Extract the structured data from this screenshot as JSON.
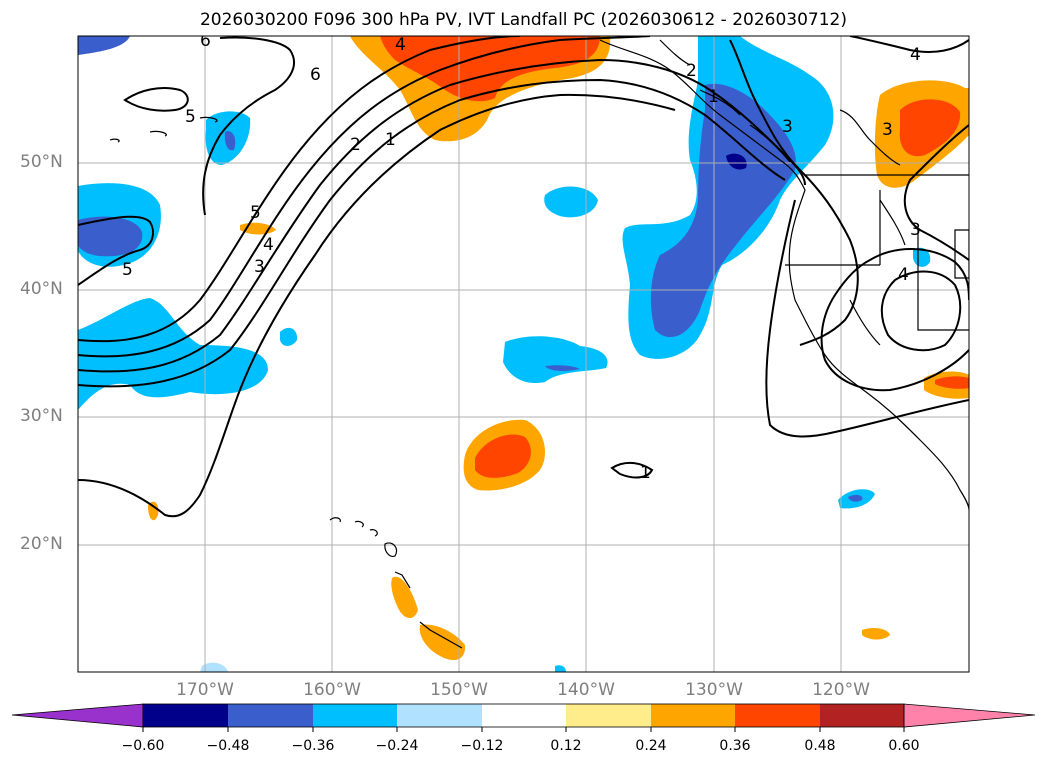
{
  "title": "2026030200 F096 300 hPa PV, IVT Landfall PC (2026030612 - 2026030712)",
  "map": {
    "lat_labels": [
      "50°N",
      "40°N",
      "30°N",
      "20°N"
    ],
    "lon_labels": [
      "170°W",
      "160°W",
      "150°W",
      "140°W",
      "130°W",
      "120°W"
    ],
    "contour_labels": [
      "6",
      "5",
      "4",
      "3",
      "2",
      "1",
      "5",
      "4",
      "3",
      "2",
      "1",
      "3",
      "4",
      "4",
      "3",
      "5",
      "1",
      "6"
    ]
  },
  "colorbar": {
    "ticks": [
      "−0.60",
      "−0.48",
      "−0.36",
      "−0.24",
      "−0.12",
      "0.12",
      "0.24",
      "0.36",
      "0.48",
      "0.60"
    ],
    "colors": [
      "#9932cc",
      "#00008b",
      "#3a5fcd",
      "#00bfff",
      "#b0e2ff",
      "#ffffff",
      "#ffec8b",
      "#ffa500",
      "#ff4500",
      "#b22222",
      "#ff82ab"
    ]
  }
}
